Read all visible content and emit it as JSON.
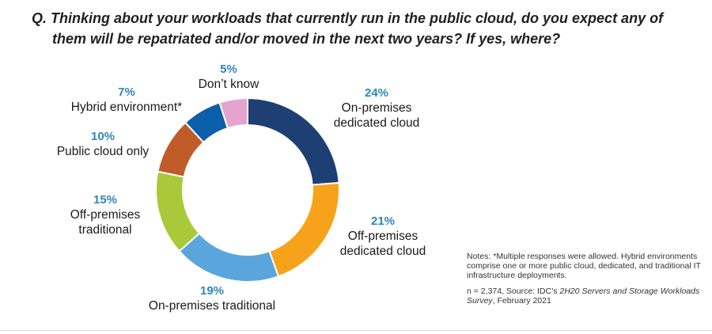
{
  "question": {
    "line1": "Q. Thinking about your workloads that currently run in the public cloud, do you expect any of",
    "line2": "them will be repatriated and/or moved in the next two years? If yes, where?"
  },
  "chart_data": {
    "type": "pie",
    "variant": "donut",
    "title": "",
    "unit": "%",
    "slices": [
      {
        "label": "On-premises dedicated cloud",
        "label_lines": [
          "On-premises",
          "dedicated cloud"
        ],
        "value": 24,
        "pct": "24%",
        "color": "#1e3f73"
      },
      {
        "label": "Off-premises dedicated cloud",
        "label_lines": [
          "Off-premises",
          "dedicated cloud"
        ],
        "value": 21,
        "pct": "21%",
        "color": "#f7a21b"
      },
      {
        "label": "On-premises traditional",
        "label_lines": [
          "On-premises traditional"
        ],
        "value": 19,
        "pct": "19%",
        "color": "#5aa5dc"
      },
      {
        "label": "Off-premises traditional",
        "label_lines": [
          "Off-premises",
          "traditional"
        ],
        "value": 15,
        "pct": "15%",
        "color": "#a9c93b"
      },
      {
        "label": "Public cloud only",
        "label_lines": [
          "Public cloud only"
        ],
        "value": 10,
        "pct": "10%",
        "color": "#bf5c28"
      },
      {
        "label": "Hybrid environment*",
        "label_lines": [
          "Hybrid environment*"
        ],
        "value": 7,
        "pct": "7%",
        "color": "#0b5ea8"
      },
      {
        "label": "Don’t know",
        "label_lines": [
          "Don’t know"
        ],
        "value": 5,
        "pct": "5%",
        "color": "#e5a3cf"
      }
    ]
  },
  "notes": {
    "note": "Notes: *Multiple responses were allowed. Hybrid environments comprise one or more public cloud, dedicated, and traditional IT infrastructure deployments.",
    "source_prefix": "n = 2,374, Source: IDC’s ",
    "source_title": "2H20 Servers and Storage Workloads Survey",
    "source_suffix": ", February 2021"
  }
}
